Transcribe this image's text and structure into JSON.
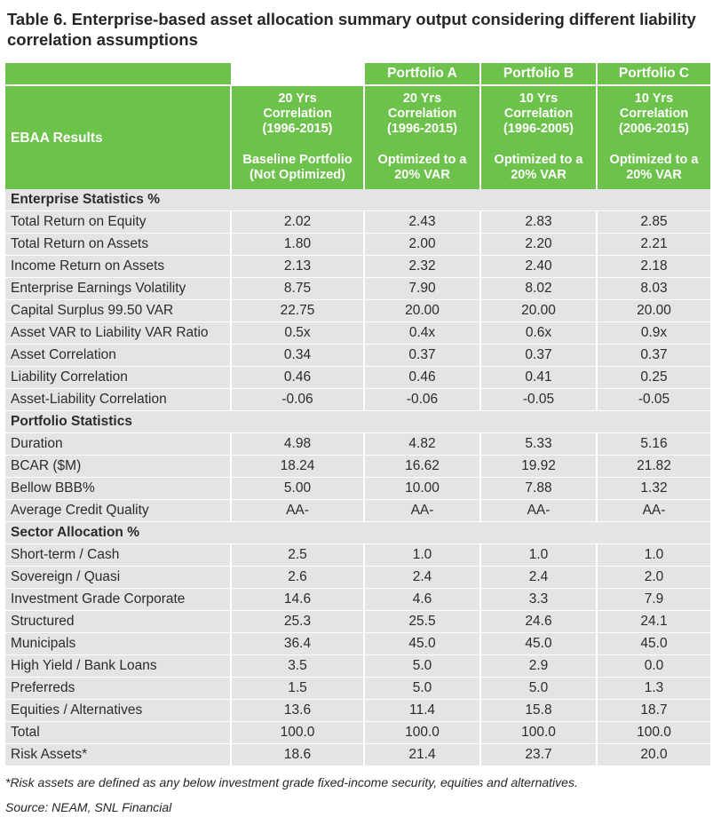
{
  "title": "Table 6. Enterprise-based asset allocation summary output considering different liability correlation assumptions",
  "portfolios": [
    "Portfolio A",
    "Portfolio B",
    "Portfolio C"
  ],
  "results_label": "EBAA Results",
  "columns": [
    {
      "period": [
        "20 Yrs",
        "Correlation",
        "(1996-2015)"
      ],
      "desc": [
        "Baseline Portfolio",
        "(Not Optimized)"
      ]
    },
    {
      "period": [
        "20 Yrs",
        "Correlation",
        "(1996-2015)"
      ],
      "desc": [
        "Optimized to a",
        "20% VAR"
      ]
    },
    {
      "period": [
        "10 Yrs",
        "Correlation",
        "(1996-2005)"
      ],
      "desc": [
        "Optimized to a",
        "20% VAR"
      ]
    },
    {
      "period": [
        "10 Yrs",
        "Correlation",
        "(2006-2015)"
      ],
      "desc": [
        "Optimized to a",
        "20% VAR"
      ]
    }
  ],
  "sections": [
    {
      "title": "Enterprise Statistics %",
      "rows": [
        {
          "label": "Total Return on Equity",
          "values": [
            "2.02",
            "2.43",
            "2.83",
            "2.85"
          ]
        },
        {
          "label": "Total Return on Assets",
          "values": [
            "1.80",
            "2.00",
            "2.20",
            "2.21"
          ]
        },
        {
          "label": "Income Return on Assets",
          "values": [
            "2.13",
            "2.32",
            "2.40",
            "2.18"
          ]
        },
        {
          "label": "Enterprise Earnings Volatility",
          "values": [
            "8.75",
            "7.90",
            "8.02",
            "8.03"
          ]
        },
        {
          "label": "Capital Surplus 99.50 VAR",
          "values": [
            "22.75",
            "20.00",
            "20.00",
            "20.00"
          ]
        },
        {
          "label": "Asset VAR to Liability VAR Ratio",
          "values": [
            "0.5x",
            "0.4x",
            "0.6x",
            "0.9x"
          ]
        },
        {
          "label": "Asset Correlation",
          "values": [
            "0.34",
            "0.37",
            "0.37",
            "0.37"
          ]
        },
        {
          "label": "Liability Correlation",
          "values": [
            "0.46",
            "0.46",
            "0.41",
            "0.25"
          ]
        },
        {
          "label": "Asset-Liability Correlation",
          "values": [
            "-0.06",
            "-0.06",
            "-0.05",
            "-0.05"
          ]
        }
      ]
    },
    {
      "title": "Portfolio Statistics",
      "rows": [
        {
          "label": "Duration",
          "values": [
            "4.98",
            "4.82",
            "5.33",
            "5.16"
          ]
        },
        {
          "label": "BCAR ($M)",
          "values": [
            "18.24",
            "16.62",
            "19.92",
            "21.82"
          ]
        },
        {
          "label": "Bellow BBB%",
          "values": [
            "5.00",
            "10.00",
            "7.88",
            "1.32"
          ]
        },
        {
          "label": "Average Credit Quality",
          "values": [
            "AA-",
            "AA-",
            "AA-",
            "AA-"
          ]
        }
      ]
    },
    {
      "title": "Sector Allocation %",
      "rows": [
        {
          "label": "Short-term / Cash",
          "values": [
            "2.5",
            "1.0",
            "1.0",
            "1.0"
          ]
        },
        {
          "label": "Sovereign / Quasi",
          "values": [
            "2.6",
            "2.4",
            "2.4",
            "2.0"
          ]
        },
        {
          "label": "Investment Grade Corporate",
          "values": [
            "14.6",
            "4.6",
            "3.3",
            "7.9"
          ]
        },
        {
          "label": "Structured",
          "values": [
            "25.3",
            "25.5",
            "24.6",
            "24.1"
          ]
        },
        {
          "label": "Municipals",
          "values": [
            "36.4",
            "45.0",
            "45.0",
            "45.0"
          ]
        },
        {
          "label": "High Yield / Bank Loans",
          "values": [
            "3.5",
            "5.0",
            "2.9",
            "0.0"
          ]
        },
        {
          "label": "Preferreds",
          "values": [
            "1.5",
            "5.0",
            "5.0",
            "1.3"
          ]
        },
        {
          "label": "Equities / Alternatives",
          "values": [
            "13.6",
            "11.4",
            "15.8",
            "18.7"
          ]
        },
        {
          "label": "Total",
          "values": [
            "100.0",
            "100.0",
            "100.0",
            "100.0"
          ]
        },
        {
          "label": "Risk Assets*",
          "values": [
            "18.6",
            "21.4",
            "23.7",
            "20.0"
          ]
        }
      ]
    }
  ],
  "footnote": "*Risk assets are defined as any below investment grade fixed-income security, equities and alternatives.",
  "source": "Source: NEAM, SNL Financial",
  "colors": {
    "header_green": "#6cc24a",
    "row_gray": "#e4e4e4",
    "text": "#262626"
  }
}
